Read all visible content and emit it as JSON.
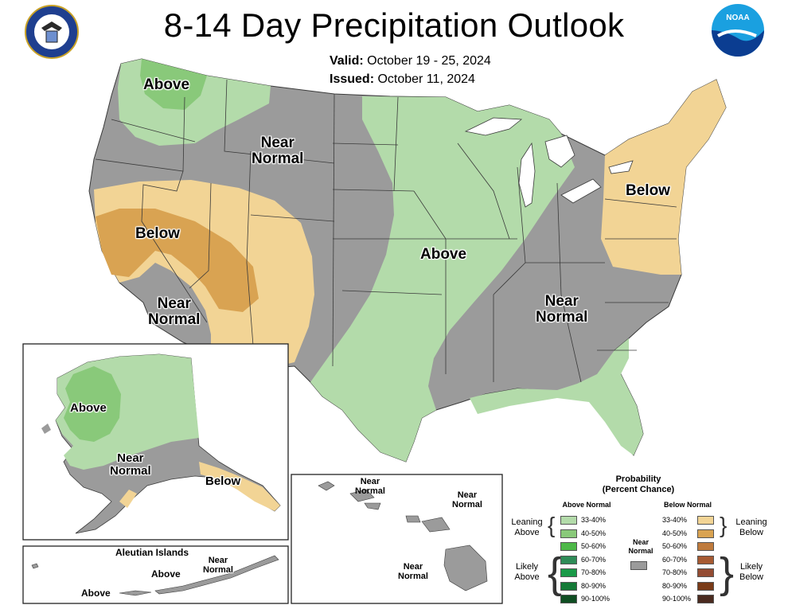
{
  "title": "8-14 Day Precipitation Outlook",
  "valid": {
    "label": "Valid:",
    "value": "October 19 - 25, 2024"
  },
  "issued": {
    "label": "Issued:",
    "value": "October 11, 2024"
  },
  "logos": {
    "commerce_seal": "department-of-commerce-seal",
    "noaa": "NOAA"
  },
  "colors": {
    "above_33_40": "#b3dbaa",
    "above_40_50": "#89c97a",
    "near_normal": "#9b9b9b",
    "below_33_40": "#f2d495",
    "below_40_50": "#d9a352",
    "land_outline": "#3a3a3a",
    "water": "#ffffff"
  },
  "conus_labels": [
    {
      "text": "Above"
    },
    {
      "text": "Near\nNormal"
    },
    {
      "text": "Below"
    },
    {
      "text": "Near\nNormal"
    },
    {
      "text": "Above"
    },
    {
      "text": "Below"
    },
    {
      "text": "Near\nNormal"
    }
  ],
  "alaska_labels": [
    {
      "text": "Above"
    },
    {
      "text": "Near\nNormal"
    },
    {
      "text": "Below"
    }
  ],
  "aleutian": {
    "title": "Aleutian Islands",
    "labels": [
      {
        "text": "Above"
      },
      {
        "text": "Above"
      },
      {
        "text": "Near\nNormal"
      }
    ]
  },
  "hawaii_labels": [
    {
      "text": "Near\nNormal"
    },
    {
      "text": "Near\nNormal"
    },
    {
      "text": "Near\nNormal"
    }
  ],
  "legend": {
    "title": "Probability",
    "subtitle": "(Percent Chance)",
    "above_header": "Above Normal",
    "below_header": "Below Normal",
    "near_label": "Near\nNormal",
    "above_rows": [
      {
        "range": "33-40%",
        "color": "#b3dbaa"
      },
      {
        "range": "40-50%",
        "color": "#89c97a"
      },
      {
        "range": "50-60%",
        "color": "#4db848"
      },
      {
        "range": "60-70%",
        "color": "#2e8b57"
      },
      {
        "range": "70-80%",
        "color": "#1a9a48"
      },
      {
        "range": "80-90%",
        "color": "#157a37"
      },
      {
        "range": "90-100%",
        "color": "#0f4d22"
      }
    ],
    "below_rows": [
      {
        "range": "33-40%",
        "color": "#f2d495"
      },
      {
        "range": "40-50%",
        "color": "#d9a352"
      },
      {
        "range": "50-60%",
        "color": "#bf7a3c"
      },
      {
        "range": "60-70%",
        "color": "#a65a32"
      },
      {
        "range": "70-80%",
        "color": "#944c33"
      },
      {
        "range": "80-90%",
        "color": "#7a3b18"
      },
      {
        "range": "90-100%",
        "color": "#4a2a1f"
      }
    ],
    "leaning_above": "Leaning\nAbove",
    "likely_above": "Likely\nAbove",
    "leaning_below": "Leaning\nBelow",
    "likely_below": "Likely\nBelow"
  }
}
